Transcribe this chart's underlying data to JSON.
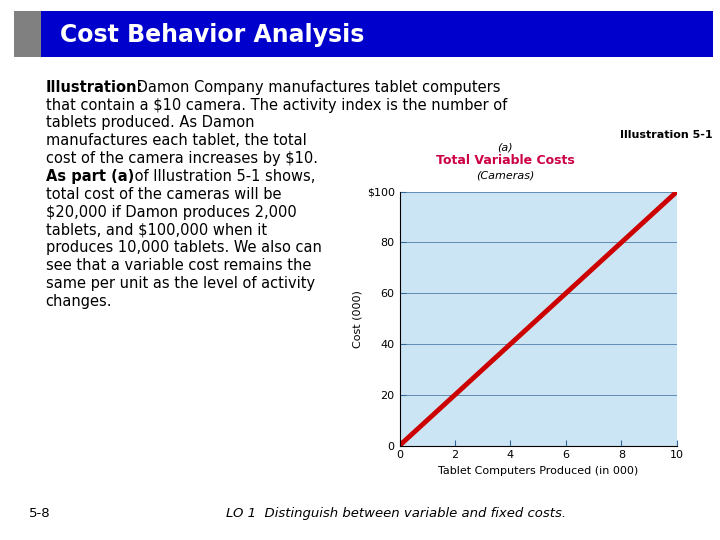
{
  "title": "Cost Behavior Analysis",
  "title_bg_color": "#0000cc",
  "title_text_color": "#ffffff",
  "title_sidebar_color": "#808080",
  "body_bg_color": "#ffffff",
  "illus_label": "Illustration 5-1",
  "chart_title_a": "(a)",
  "chart_title_main": "Total Variable Costs",
  "chart_title_main_color": "#cc0044",
  "chart_title_sub": "(Cameras)",
  "chart_bg_color": "#cce5f5",
  "line_color": "#cc0000",
  "line_x": [
    0,
    10
  ],
  "line_y": [
    0,
    100
  ],
  "ylabel": "Cost (000)",
  "xlabel": "Tablet Computers Produced (in 000)",
  "yticks": [
    0,
    20,
    40,
    60,
    80,
    100
  ],
  "ytick_labels": [
    "0",
    "20",
    "40",
    "60",
    "80",
    "$100"
  ],
  "xticks": [
    0,
    2,
    4,
    6,
    8,
    10
  ],
  "xlim": [
    0,
    10
  ],
  "ylim": [
    0,
    100
  ],
  "tick_color": "#336699",
  "footer_text": "LO 1  Distinguish between variable and fixed costs.",
  "page_number": "5-8"
}
